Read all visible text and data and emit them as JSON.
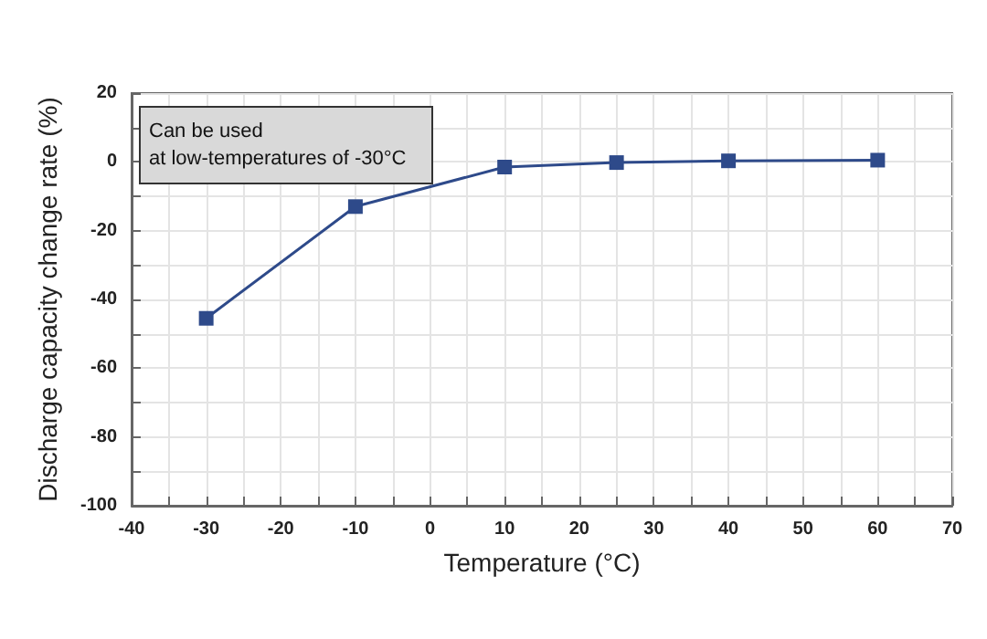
{
  "chart_data": {
    "type": "line",
    "xlabel": "Temperature (°C)",
    "ylabel": "Discharge capacity change rate (%)",
    "annotations": [
      "Can be used\nat low-temperatures of -30°C"
    ],
    "x": [
      -30,
      -10,
      10,
      25,
      40,
      60
    ],
    "series": [
      {
        "color": "#2e4a8a",
        "values": [
          -45.5,
          -13,
          -1.5,
          -0.2,
          0.3,
          0.5
        ]
      }
    ],
    "xlim": [
      -40,
      70
    ],
    "xticks": [
      -40,
      {
        "value": -35,
        "label": null
      },
      -30,
      {
        "value": -25,
        "label": null
      },
      -20,
      {
        "value": -15,
        "label": null
      },
      -10,
      {
        "value": -5,
        "label": null
      },
      0,
      {
        "value": 5,
        "label": null
      },
      10,
      {
        "value": 15,
        "label": null
      },
      20,
      {
        "value": 25,
        "label": null
      },
      30,
      {
        "value": 35,
        "label": null
      },
      40,
      {
        "value": 45,
        "label": null
      },
      50,
      {
        "value": 55,
        "label": null
      },
      60,
      {
        "value": 65,
        "label": null
      },
      70
    ],
    "ylim": [
      -100,
      20
    ],
    "yticks": [
      -100,
      {
        "value": -90,
        "label": null
      },
      -80,
      {
        "value": -70,
        "label": null
      },
      -60,
      {
        "value": -50,
        "label": null
      },
      -40,
      {
        "value": -30,
        "label": null
      },
      -20,
      {
        "value": -10,
        "label": null
      },
      0,
      {
        "value": 10,
        "label": null
      },
      20
    ],
    "grid": true,
    "marker": "square",
    "line_style": "solid"
  }
}
